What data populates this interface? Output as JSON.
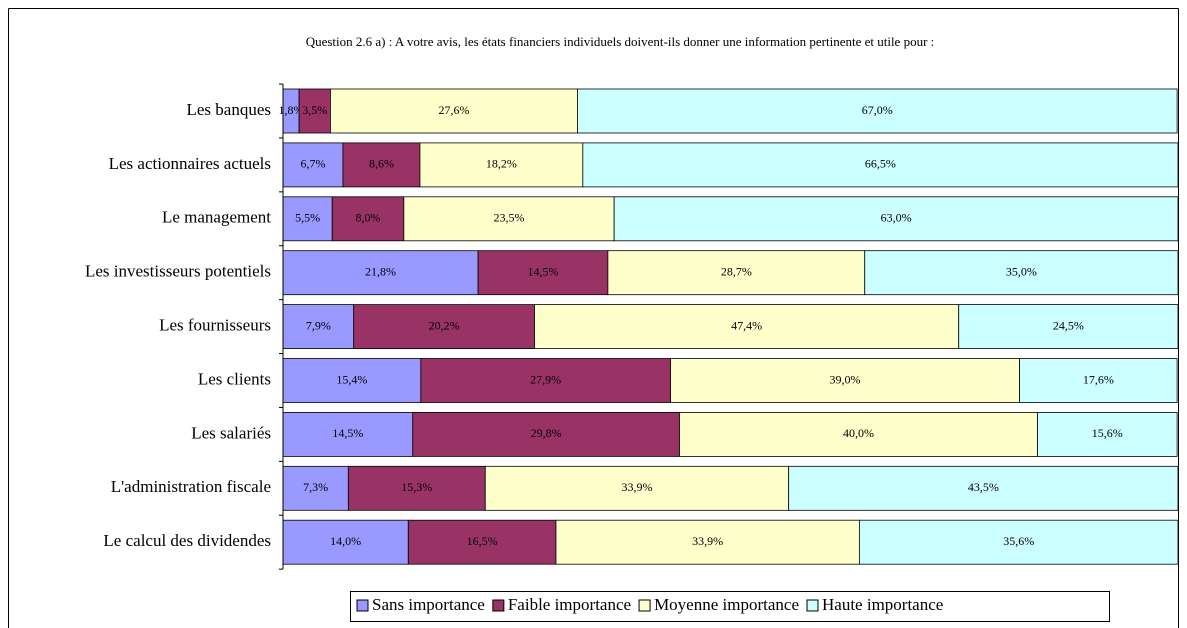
{
  "chart_data": {
    "type": "stacked-bar-horizontal",
    "title": "Question 2.6 a) : A votre avis, les états financiers individuels doivent-ils donner une information pertinente et utile pour :",
    "categories": [
      "Les banques",
      "Les actionnaires actuels",
      "Le management",
      "Les investisseurs potentiels",
      "Les fournisseurs",
      "Les clients",
      "Les salariés",
      "L'administration fiscale",
      "Le calcul des dividendes"
    ],
    "xlim": [
      0,
      100
    ],
    "series": [
      {
        "name": "Sans importance",
        "color": "#9999ff",
        "values": [
          1.8,
          6.7,
          5.5,
          21.8,
          7.9,
          15.4,
          14.5,
          7.3,
          14.0
        ],
        "value_labels": [
          "1,8%",
          "6,7%",
          "5,5%",
          "21,8%",
          "7,9%",
          "15,4%",
          "14,5%",
          "7,3%",
          "14,0%"
        ]
      },
      {
        "name": "Faible importance",
        "color": "#993366",
        "values": [
          3.5,
          8.6,
          8.0,
          14.5,
          20.2,
          27.9,
          29.8,
          15.3,
          16.5
        ],
        "value_labels": [
          "3,5%",
          "8,6%",
          "8,0%",
          "14,5%",
          "20,2%",
          "27,9%",
          "29,8%",
          "15,3%",
          "16,5%"
        ]
      },
      {
        "name": "Moyenne importance",
        "color": "#ffffcc",
        "values": [
          27.6,
          18.2,
          23.5,
          28.7,
          47.4,
          39.0,
          40.0,
          33.9,
          33.9
        ],
        "value_labels": [
          "27,6%",
          "18,2%",
          "23,5%",
          "28,7%",
          "47,4%",
          "39,0%",
          "40,0%",
          "33,9%",
          "33,9%"
        ]
      },
      {
        "name": "Haute importance",
        "color": "#ccffff",
        "values": [
          67.0,
          66.5,
          63.0,
          35.0,
          24.5,
          17.6,
          15.6,
          43.5,
          35.6
        ],
        "value_labels": [
          "67,0%",
          "66,5%",
          "63,0%",
          "35,0%",
          "24,5%",
          "17,6%",
          "15,6%",
          "43,5%",
          "35,6%"
        ]
      }
    ],
    "legend": "bottom"
  }
}
